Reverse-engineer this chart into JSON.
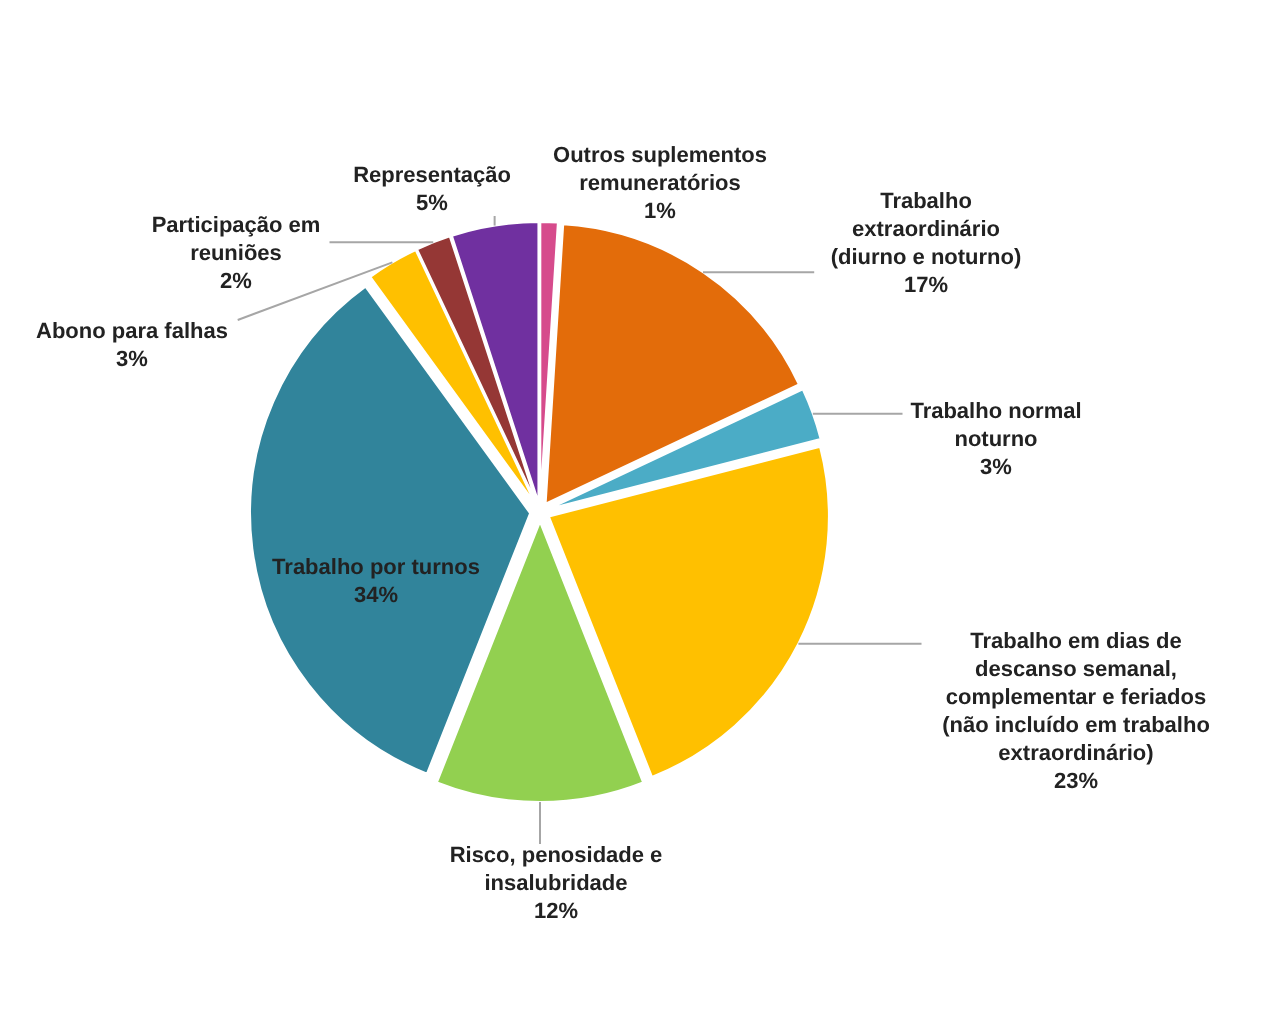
{
  "chart_data": {
    "type": "pie",
    "categories": [
      "Outros suplementos remuneratórios",
      "Trabalho extraordinário (diurno e noturno)",
      "Trabalho normal noturno",
      "Trabalho em dias de descanso semanal, complementar e feriados (não incluído em trabalho extraordinário)",
      "Risco, penosidade e insalubridade",
      "Trabalho por turnos",
      "Abono para falhas",
      "Participação em reuniões",
      "Representação"
    ],
    "values": [
      1,
      17,
      3,
      23,
      12,
      34,
      3,
      2,
      5
    ],
    "colors": [
      "#d64b8c",
      "#e36c0a",
      "#4bacc6",
      "#ffc000",
      "#92d050",
      "#31849b",
      "#ffc000",
      "#953735",
      "#7030a0"
    ],
    "value_labels": [
      "1%",
      "17%",
      "3%",
      "23%",
      "12%",
      "34%",
      "3%",
      "2%",
      "5%"
    ]
  }
}
